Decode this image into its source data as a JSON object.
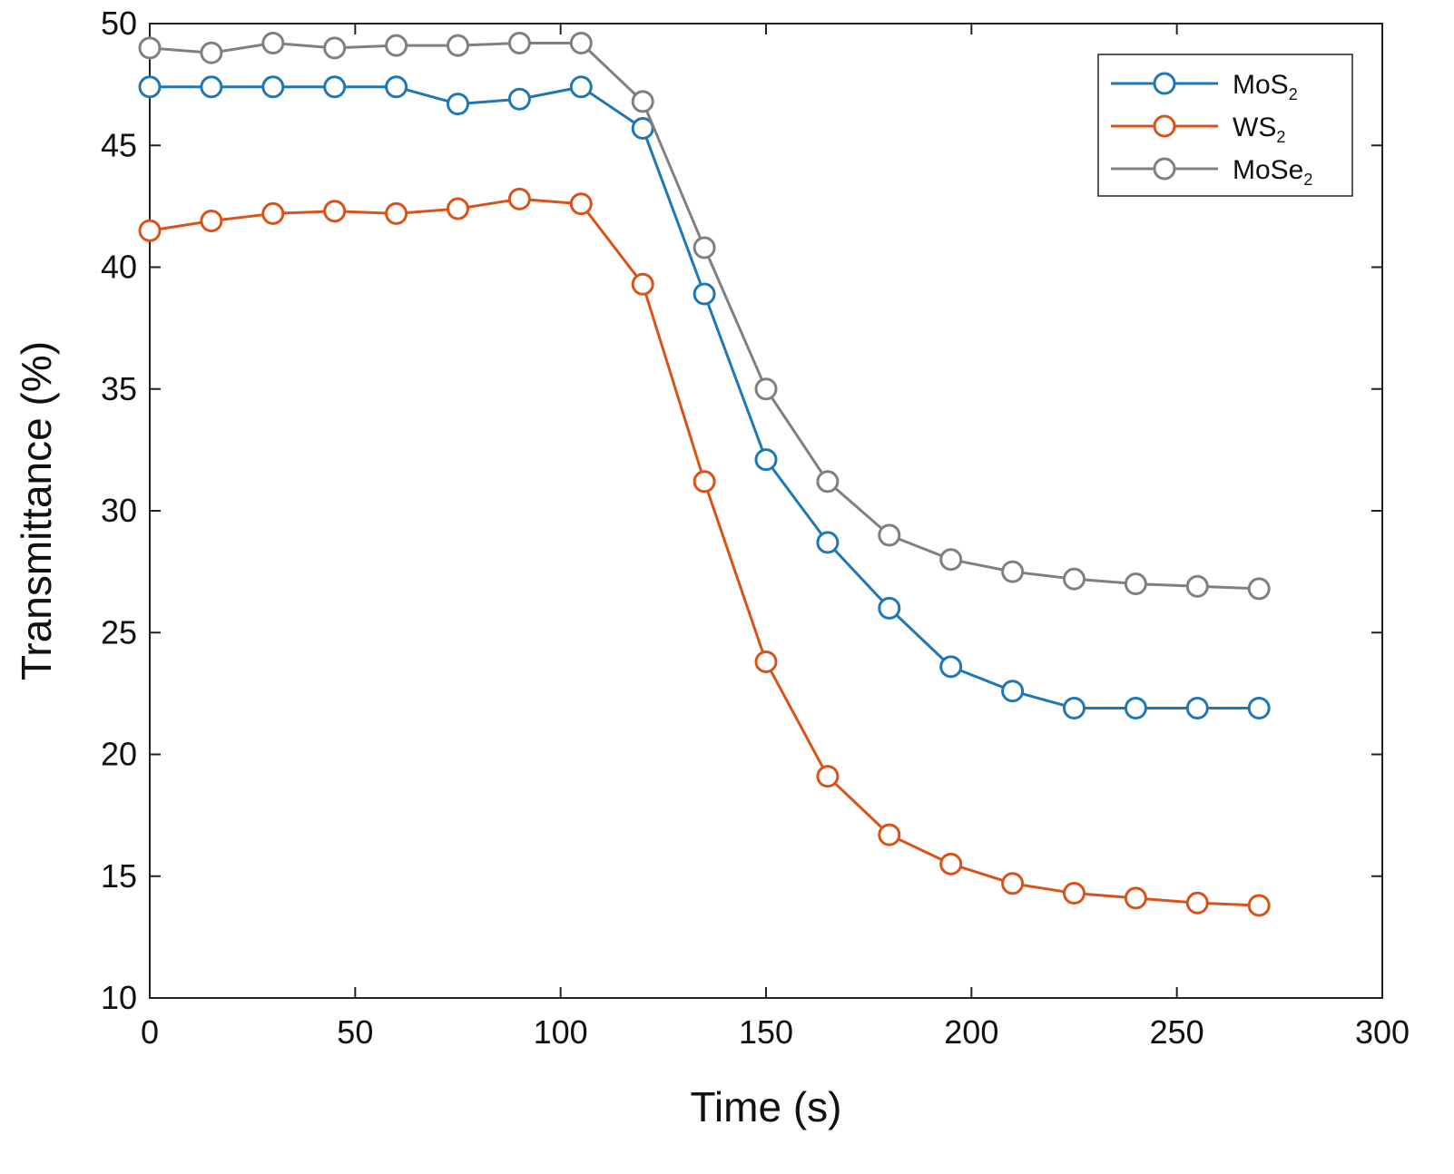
{
  "chart_data": {
    "type": "line",
    "xlabel": "Time (s)",
    "ylabel": "Transmittance (%)",
    "xlim": [
      0,
      300
    ],
    "ylim": [
      10,
      50
    ],
    "xticks": [
      0,
      50,
      100,
      150,
      200,
      250,
      300
    ],
    "yticks": [
      10,
      15,
      20,
      25,
      30,
      35,
      40,
      45,
      50
    ],
    "x": [
      0,
      15,
      30,
      45,
      60,
      75,
      90,
      105,
      120,
      135,
      150,
      165,
      180,
      195,
      210,
      225,
      240,
      255,
      270
    ],
    "grid": false,
    "legend_position": "top-right",
    "series": [
      {
        "name": "MoS2",
        "label_main": "MoS",
        "label_sub": "2",
        "color": "#1f77b4",
        "marker": "open-circle",
        "values": [
          47.4,
          47.4,
          47.4,
          47.4,
          47.4,
          46.7,
          46.9,
          47.4,
          45.7,
          38.9,
          32.1,
          28.7,
          26.0,
          23.6,
          22.6,
          21.9,
          21.9,
          21.9,
          21.9
        ]
      },
      {
        "name": "WS2",
        "label_main": "WS",
        "label_sub": "2",
        "color": "#d95319",
        "marker": "open-circle",
        "values": [
          41.5,
          41.9,
          42.2,
          42.3,
          42.2,
          42.4,
          42.8,
          42.6,
          39.3,
          31.2,
          23.8,
          19.1,
          16.7,
          15.5,
          14.7,
          14.3,
          14.1,
          13.9,
          13.8
        ]
      },
      {
        "name": "MoSe2",
        "label_main": "MoSe",
        "label_sub": "2",
        "color": "#808080",
        "marker": "open-circle",
        "values": [
          49.0,
          48.8,
          49.2,
          49.0,
          49.1,
          49.1,
          49.2,
          49.2,
          46.8,
          40.8,
          35.0,
          31.2,
          29.0,
          28.0,
          27.5,
          27.2,
          27.0,
          26.9,
          26.8
        ]
      }
    ]
  }
}
